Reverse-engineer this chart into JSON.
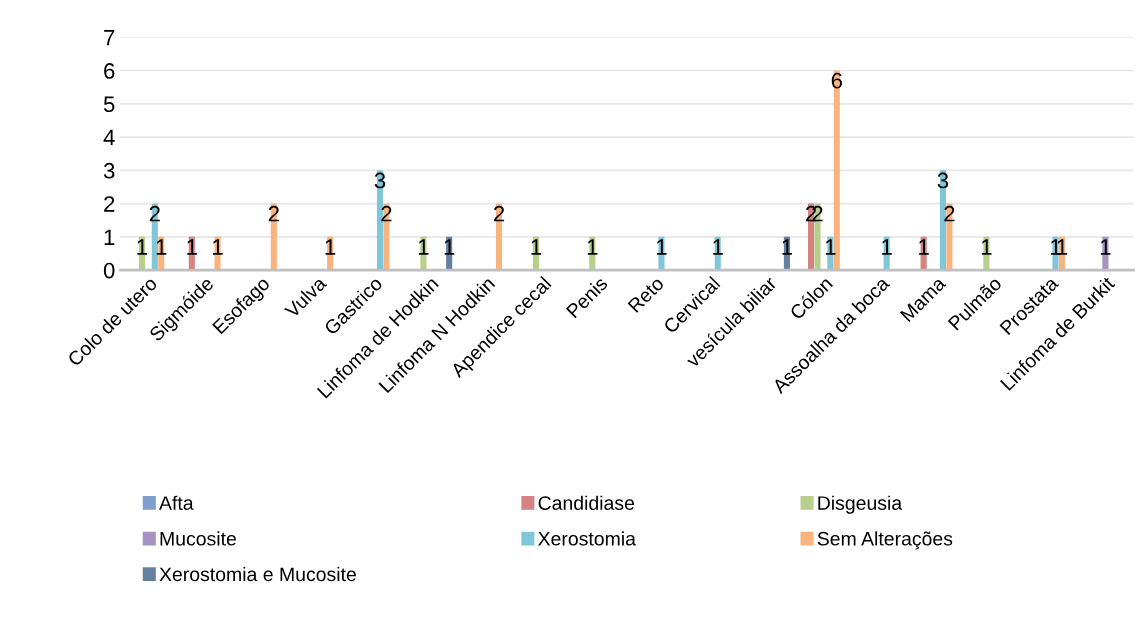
{
  "chart_data": {
    "type": "bar",
    "categories": [
      "Colo de utero",
      "Sigmóide",
      "Esofago",
      "Vulva",
      "Gastrico",
      "Linfoma de Hodkin",
      "Linfoma N Hodkin",
      "Apendice cecal",
      "Penis",
      "Reto",
      "Cervical",
      "vesícula biliar",
      "Cólon",
      "Assoalha da boca",
      "Mama",
      "Pulmão",
      "Prostata",
      "Linfoma de Burkit"
    ],
    "series": [
      {
        "name": "Afta",
        "color": "#7f9fcf",
        "values": [
          null,
          null,
          null,
          null,
          null,
          null,
          null,
          null,
          null,
          null,
          null,
          null,
          null,
          null,
          null,
          null,
          null,
          null
        ]
      },
      {
        "name": "Candidiase",
        "color": "#d48282",
        "values": [
          null,
          1,
          null,
          null,
          null,
          null,
          null,
          null,
          null,
          null,
          null,
          null,
          2,
          null,
          1,
          null,
          null,
          null
        ]
      },
      {
        "name": "Disgeusia",
        "color": "#b8cf8c",
        "values": [
          1,
          null,
          null,
          null,
          null,
          1,
          null,
          1,
          1,
          null,
          null,
          null,
          2,
          null,
          null,
          1,
          null,
          null
        ]
      },
      {
        "name": "Mucosite",
        "color": "#a593c2",
        "values": [
          null,
          null,
          null,
          null,
          null,
          null,
          null,
          null,
          null,
          null,
          null,
          null,
          null,
          null,
          null,
          null,
          null,
          1
        ]
      },
      {
        "name": "Xerostomia",
        "color": "#80c6d8",
        "values": [
          2,
          null,
          null,
          null,
          3,
          null,
          null,
          null,
          null,
          1,
          1,
          null,
          1,
          1,
          3,
          null,
          1,
          null
        ]
      },
      {
        "name": "Sem Alterações",
        "color": "#f8b47e",
        "values": [
          1,
          1,
          2,
          1,
          2,
          null,
          2,
          null,
          null,
          null,
          null,
          null,
          6,
          null,
          2,
          null,
          1,
          null
        ]
      },
      {
        "name": "Xerostomia e Mucosite",
        "color": "#66809f",
        "values": [
          null,
          null,
          null,
          null,
          null,
          1,
          null,
          null,
          null,
          null,
          null,
          1,
          null,
          null,
          null,
          null,
          null,
          null
        ]
      }
    ],
    "ylim": [
      0,
      7
    ],
    "yticks": [
      0,
      1,
      2,
      3,
      4,
      5,
      6,
      7
    ],
    "grid": "y",
    "legend": "bottom",
    "data_labels": true
  }
}
